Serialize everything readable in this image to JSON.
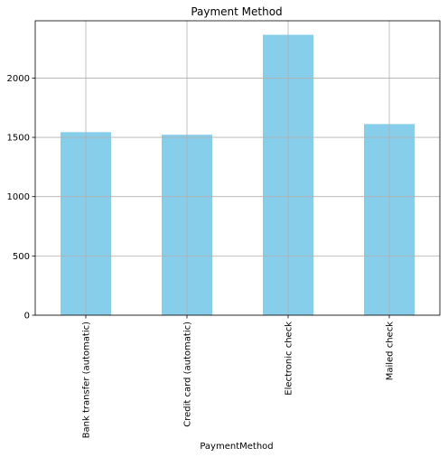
{
  "chart_data": {
    "type": "bar",
    "title": "Payment Method",
    "xlabel": "PaymentMethod",
    "ylabel": "",
    "categories": [
      "Bank transfer (automatic)",
      "Credit card (automatic)",
      "Electronic check",
      "Mailed check"
    ],
    "values": [
      1544,
      1522,
      2365,
      1612
    ],
    "ylim": [
      0,
      2483
    ],
    "yticks": [
      0,
      500,
      1000,
      1500,
      2000
    ],
    "grid": true,
    "bar_color": "#87ceeb",
    "grid_color": "#b0b0b0"
  }
}
